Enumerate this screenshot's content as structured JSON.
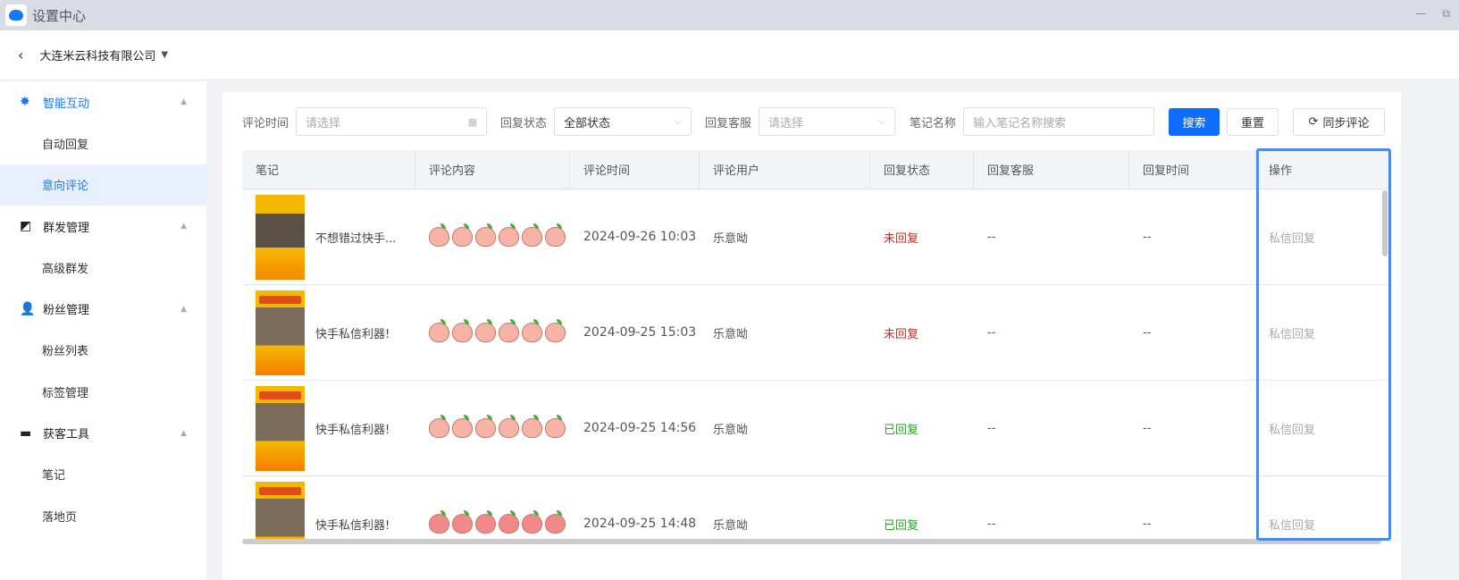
{
  "window": {
    "title": "设置中心",
    "minimize": "—",
    "restore": "⧉"
  },
  "header": {
    "company": "大连米云科技有限公司"
  },
  "sidebar": {
    "groups": [
      {
        "label": "智能互动",
        "icon": "star-icon",
        "items": [
          "自动回复",
          "意向评论"
        ]
      },
      {
        "label": "群发管理",
        "icon": "broadcast-icon",
        "items": [
          "高级群发"
        ]
      },
      {
        "label": "粉丝管理",
        "icon": "user-icon",
        "items": [
          "粉丝列表",
          "标签管理"
        ]
      },
      {
        "label": "获客工具",
        "icon": "briefcase-icon",
        "items": [
          "笔记",
          "落地页"
        ]
      }
    ],
    "selected": "意向评论"
  },
  "filters": {
    "comment_time_label": "评论时间",
    "comment_time_placeholder": "请选择",
    "reply_status_label": "回复状态",
    "reply_status_value": "全部状态",
    "reply_agent_label": "回复客服",
    "reply_agent_placeholder": "请选择",
    "note_name_label": "笔记名称",
    "note_name_placeholder": "输入笔记名称搜索",
    "search": "搜索",
    "reset": "重置",
    "sync": "同步评论"
  },
  "table": {
    "columns": [
      "笔记",
      "评论内容",
      "评论时间",
      "评论用户",
      "回复状态",
      "回复客服",
      "回复时间",
      "操作"
    ],
    "rows": [
      {
        "note": "不想错过快手...",
        "time": "2024-09-26 10:03",
        "user": "乐意呦",
        "status": "未回复",
        "agent": "--",
        "reply_time": "--",
        "action": "私信回复"
      },
      {
        "note": "快手私信利器!",
        "time": "2024-09-25 15:03",
        "user": "乐意呦",
        "status": "未回复",
        "agent": "--",
        "reply_time": "--",
        "action": "私信回复"
      },
      {
        "note": "快手私信利器!",
        "time": "2024-09-25 14:56",
        "user": "乐意呦",
        "status": "已回复",
        "agent": "--",
        "reply_time": "--",
        "action": "私信回复"
      },
      {
        "note": "快手私信利器!",
        "time": "2024-09-25 14:48",
        "user": "乐意呦",
        "status": "已回复",
        "agent": "--",
        "reply_time": "--",
        "action": "私信回复"
      }
    ]
  },
  "colors": {
    "primary": "#0d6efd",
    "unreplied": "#e02020",
    "replied": "#1aad19",
    "highlight": "#4a8af4"
  }
}
